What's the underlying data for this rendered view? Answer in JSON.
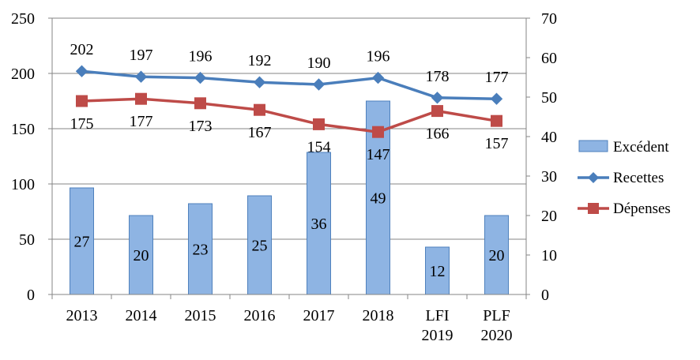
{
  "chart_data": {
    "type": "bar",
    "categories": [
      [
        "2013"
      ],
      [
        "2014"
      ],
      [
        "2015"
      ],
      [
        "2016"
      ],
      [
        "2017"
      ],
      [
        "2018"
      ],
      [
        "LFI",
        "2019"
      ],
      [
        "PLF",
        "2020"
      ]
    ],
    "y_left": {
      "ticks": [
        "0",
        "50",
        "100",
        "150",
        "200",
        "250"
      ],
      "range": [
        0,
        250
      ],
      "grid": true
    },
    "y_right": {
      "ticks": [
        "0",
        "10",
        "20",
        "30",
        "40",
        "50",
        "60",
        "70"
      ],
      "range": [
        0,
        70
      ]
    },
    "series": [
      {
        "name": "Excédent",
        "kind": "bar",
        "axis": "right",
        "color": "#8EB4E3",
        "stroke": "#4F81BD",
        "values": [
          27,
          20,
          23,
          25,
          36,
          49,
          12,
          20
        ],
        "labels": [
          "27",
          "20",
          "23",
          "25",
          "36",
          "49",
          "12",
          "20"
        ]
      },
      {
        "name": "Recettes",
        "kind": "line",
        "axis": "left",
        "color": "#4A7EBB",
        "marker": "diamond",
        "values": [
          202,
          197,
          196,
          192,
          190,
          196,
          178,
          177
        ],
        "labels": [
          "202",
          "197",
          "196",
          "192",
          "190",
          "196",
          "178",
          "177"
        ]
      },
      {
        "name": "Dépenses",
        "kind": "line",
        "axis": "left",
        "color": "#BE4B48",
        "marker": "square",
        "values": [
          175,
          177,
          173,
          167,
          154,
          147,
          166,
          157
        ],
        "labels": [
          "175",
          "177",
          "173",
          "167",
          "154",
          "147",
          "166",
          "157"
        ]
      }
    ],
    "legend": {
      "position": "right"
    }
  }
}
